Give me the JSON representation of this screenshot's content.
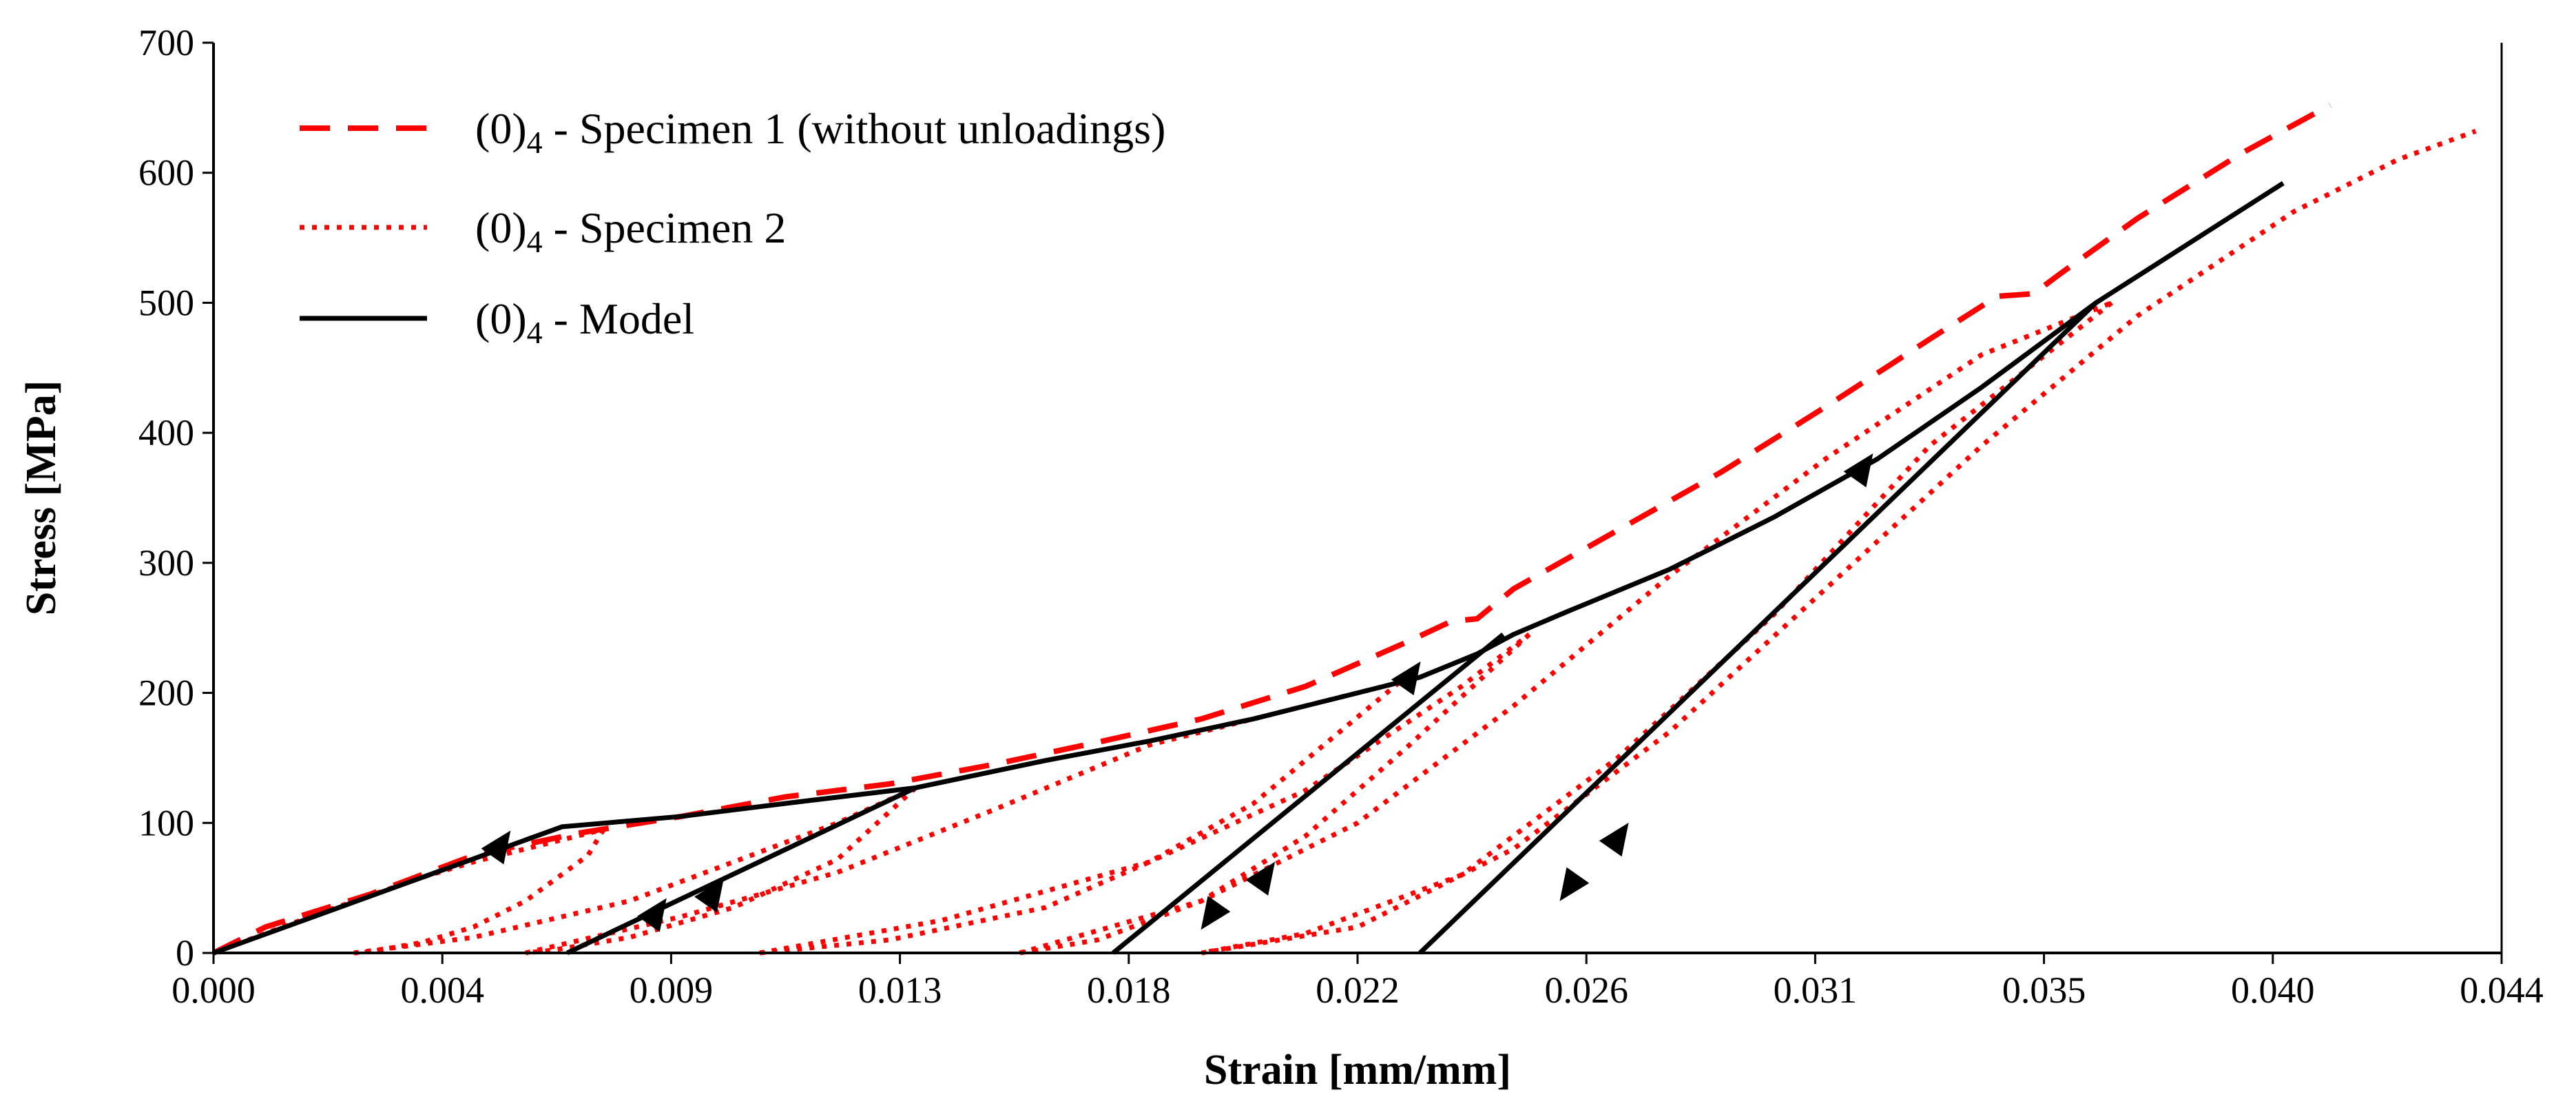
{
  "chart_data": {
    "type": "line",
    "xlabel": "Strain [mm/mm]",
    "ylabel": "Stress [MPa]",
    "xlim": [
      0,
      0.044
    ],
    "ylim": [
      0,
      700
    ],
    "x_ticks": [
      0.0,
      0.004,
      0.009,
      0.013,
      0.018,
      0.022,
      0.026,
      0.031,
      0.035,
      0.04,
      0.044
    ],
    "x_tick_labels": [
      "0.000",
      "0.004",
      "0.009",
      "0.013",
      "0.018",
      "0.022",
      "0.026",
      "0.031",
      "0.035",
      "0.040",
      "0.044"
    ],
    "y_ticks": [
      0,
      100,
      200,
      300,
      400,
      500,
      600,
      700
    ],
    "y_tick_labels": [
      "0",
      "100",
      "200",
      "300",
      "400",
      "500",
      "600",
      "700"
    ],
    "grid": false,
    "legend_position": "top-left",
    "legend": [
      {
        "prefix": "(0)",
        "subscript": "4",
        "suffix": " - Specimen 1 (without unloadings)",
        "style": "dashed",
        "color": "#ff0000"
      },
      {
        "prefix": "(0)",
        "subscript": "4",
        "suffix": " - Specimen 2",
        "style": "dotted",
        "color": "#ff0000"
      },
      {
        "prefix": "(0)",
        "subscript": "4",
        "suffix": " - Model",
        "style": "solid",
        "color": "#000000"
      }
    ],
    "series": [
      {
        "style": "dashed",
        "color": "#ff0000",
        "points": [
          [
            0,
            0
          ],
          [
            0.001,
            20
          ],
          [
            0.003,
            45
          ],
          [
            0.005,
            75
          ],
          [
            0.007,
            92
          ],
          [
            0.009,
            105
          ],
          [
            0.011,
            120
          ],
          [
            0.013,
            130
          ],
          [
            0.015,
            145
          ],
          [
            0.017,
            162
          ],
          [
            0.019,
            180
          ],
          [
            0.021,
            205
          ],
          [
            0.023,
            240
          ],
          [
            0.0238,
            255
          ],
          [
            0.0243,
            257
          ],
          [
            0.025,
            280
          ],
          [
            0.027,
            325
          ],
          [
            0.029,
            370
          ],
          [
            0.031,
            420
          ],
          [
            0.033,
            472
          ],
          [
            0.0343,
            505
          ],
          [
            0.035,
            507
          ],
          [
            0.0355,
            522
          ],
          [
            0.037,
            565
          ],
          [
            0.039,
            615
          ],
          [
            0.0407,
            652
          ]
        ]
      },
      {
        "style": "dotted",
        "color": "#ff0000",
        "branches": [
          [
            [
              0,
              0
            ],
            [
              0.002,
              30
            ],
            [
              0.004,
              58
            ],
            [
              0.005,
              70
            ],
            [
              0.006,
              80
            ],
            [
              0.007,
              90
            ],
            [
              0.0075,
              95
            ]
          ],
          [
            [
              0.0075,
              95
            ],
            [
              0.0072,
              75
            ],
            [
              0.006,
              40
            ],
            [
              0.005,
              20
            ],
            [
              0.004,
              8
            ],
            [
              0.003,
              1
            ],
            [
              0.0027,
              0
            ]
          ],
          [
            [
              0.0027,
              0
            ],
            [
              0.005,
              12
            ],
            [
              0.008,
              40
            ],
            [
              0.01,
              70
            ],
            [
              0.012,
              100
            ],
            [
              0.0135,
              127
            ]
          ],
          [
            [
              0.0135,
              127
            ],
            [
              0.012,
              72
            ],
            [
              0.01,
              35
            ],
            [
              0.008,
              12
            ],
            [
              0.0065,
              2
            ],
            [
              0.006,
              0
            ]
          ],
          [
            [
              0.006,
              0
            ],
            [
              0.009,
              28
            ],
            [
              0.012,
              62
            ],
            [
              0.015,
              110
            ],
            [
              0.018,
              160
            ],
            [
              0.021,
              190
            ],
            [
              0.0228,
              208
            ]
          ],
          [
            [
              0.0228,
              208
            ],
            [
              0.02,
              115
            ],
            [
              0.018,
              70
            ],
            [
              0.016,
              35
            ],
            [
              0.013,
              10
            ],
            [
              0.0105,
              0
            ]
          ],
          [
            [
              0.0105,
              0
            ],
            [
              0.014,
              25
            ],
            [
              0.018,
              70
            ],
            [
              0.021,
              125
            ],
            [
              0.024,
              205
            ],
            [
              0.0253,
              245
            ]
          ],
          [
            [
              0.0253,
              245
            ],
            [
              0.023,
              160
            ],
            [
              0.021,
              90
            ],
            [
              0.019,
              40
            ],
            [
              0.017,
              10
            ],
            [
              0.0155,
              0
            ]
          ],
          [
            [
              0.0155,
              0
            ],
            [
              0.019,
              40
            ],
            [
              0.022,
              100
            ],
            [
              0.025,
              190
            ],
            [
              0.028,
              290
            ],
            [
              0.031,
              380
            ],
            [
              0.034,
              460
            ],
            [
              0.0365,
              500
            ]
          ],
          [
            [
              0.0365,
              500
            ],
            [
              0.033,
              390
            ],
            [
              0.03,
              260
            ],
            [
              0.027,
              150
            ],
            [
              0.024,
              60
            ],
            [
              0.021,
              15
            ],
            [
              0.019,
              0
            ]
          ],
          [
            [
              0.019,
              0
            ],
            [
              0.022,
              20
            ],
            [
              0.025,
              80
            ],
            [
              0.028,
              170
            ],
            [
              0.031,
              280
            ],
            [
              0.034,
              390
            ],
            [
              0.037,
              490
            ],
            [
              0.04,
              570
            ],
            [
              0.042,
              610
            ],
            [
              0.0435,
              632
            ]
          ]
        ]
      },
      {
        "style": "solid",
        "color": "#000000",
        "branches": [
          [
            [
              0,
              0
            ],
            [
              0.0067,
              97
            ],
            [
              0.009,
              105
            ],
            [
              0.011,
              115
            ],
            [
              0.0135,
              127
            ],
            [
              0.016,
              148
            ],
            [
              0.018,
              163
            ],
            [
              0.02,
              180
            ],
            [
              0.022,
              200
            ],
            [
              0.0232,
              212
            ],
            [
              0.0243,
              230
            ],
            [
              0.025,
              245
            ],
            [
              0.026,
              262
            ],
            [
              0.028,
              295
            ],
            [
              0.03,
              335
            ],
            [
              0.032,
              380
            ],
            [
              0.034,
              435
            ],
            [
              0.0362,
              500
            ],
            [
              0.0398,
              592
            ]
          ],
          [
            [
              0.0068,
              0
            ],
            [
              0.0135,
              127
            ]
          ],
          [
            [
              0.0173,
              0
            ],
            [
              0.0248,
              245
            ]
          ],
          [
            [
              0.0232,
              0
            ],
            [
              0.0362,
              500
            ]
          ]
        ]
      }
    ],
    "arrows": [
      {
        "x": 0.0055,
        "y": 82,
        "dir": "up"
      },
      {
        "x": 0.0085,
        "y": 30,
        "dir": "up"
      },
      {
        "x": 0.0096,
        "y": 45,
        "dir": "up"
      },
      {
        "x": 0.023,
        "y": 212,
        "dir": "up"
      },
      {
        "x": 0.0192,
        "y": 30,
        "dir": "down"
      },
      {
        "x": 0.0202,
        "y": 58,
        "dir": "up"
      },
      {
        "x": 0.0317,
        "y": 372,
        "dir": "up"
      },
      {
        "x": 0.0261,
        "y": 52,
        "dir": "down"
      },
      {
        "x": 0.027,
        "y": 88,
        "dir": "up"
      }
    ]
  }
}
